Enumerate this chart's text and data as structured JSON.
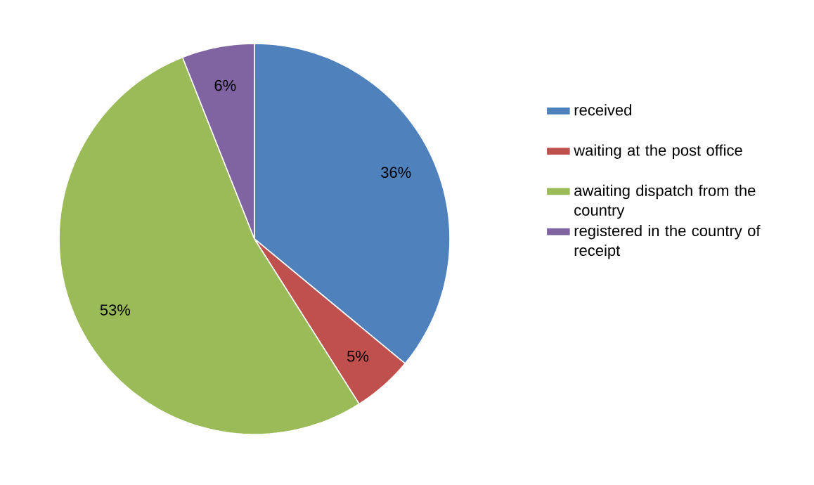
{
  "chart_data": {
    "type": "pie",
    "categories": [
      "received",
      "waiting at the post office",
      "awaiting dispatch from the country",
      "registered in the country of receipt"
    ],
    "values": [
      36,
      5,
      53,
      6
    ],
    "value_labels": [
      "36%",
      "5%",
      "53%",
      "6%"
    ],
    "colors": [
      "#4f81bd",
      "#c0504d",
      "#9bbb59",
      "#8064a2"
    ],
    "legend": "right"
  }
}
